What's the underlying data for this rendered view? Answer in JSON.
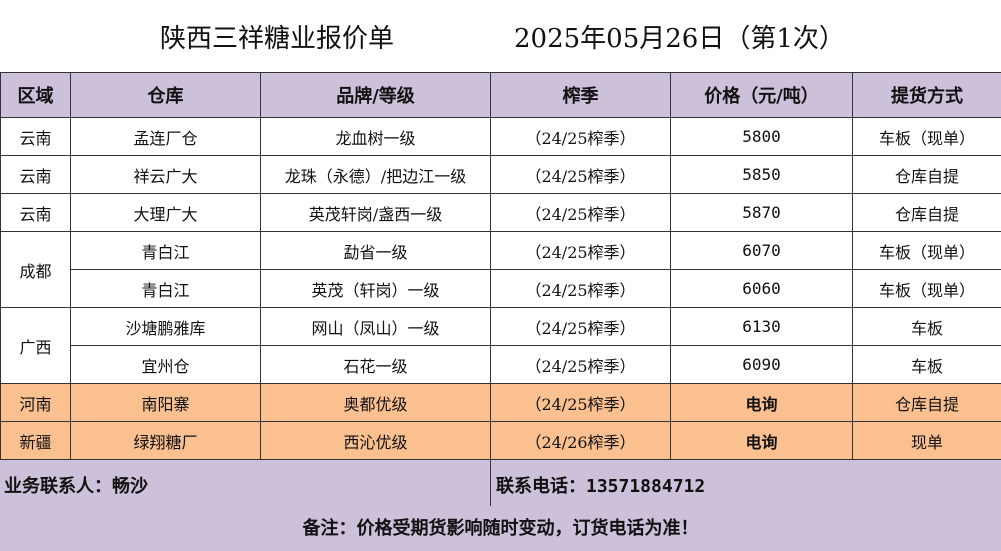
{
  "title": {
    "company": "陕西三祥糖业报价单",
    "date": "2025年05月26日（第1次）"
  },
  "columns": [
    "区域",
    "仓库",
    "品牌/等级",
    "榨季",
    "价格（元/吨）",
    "提货方式"
  ],
  "regions": {
    "yunnan": "云南",
    "chengdu": "成都",
    "guangxi": "广西",
    "henan": "河南",
    "xinjiang": "新疆"
  },
  "rows": [
    {
      "warehouse": "孟连厂仓",
      "brand": "龙血树一级",
      "season": "（24/25榨季）",
      "price": "5800",
      "delivery": "车板（现单）"
    },
    {
      "warehouse": "祥云广大",
      "brand": "龙珠（永德）/把边江一级",
      "season": "（24/25榨季）",
      "price": "5850",
      "delivery": "仓库自提"
    },
    {
      "warehouse": "大理广大",
      "brand": "英茂轩岗/盏西一级",
      "season": "（24/25榨季）",
      "price": "5870",
      "delivery": "仓库自提"
    },
    {
      "warehouse": "青白江",
      "brand": "勐省一级",
      "season": "（24/25榨季）",
      "price": "6070",
      "delivery": "车板（现单）"
    },
    {
      "warehouse": "青白江",
      "brand": "英茂（轩岗）一级",
      "season": "（24/25榨季）",
      "price": "6060",
      "delivery": "车板（现单）"
    },
    {
      "warehouse": "沙塘鹏雅库",
      "brand": "网山（凤山）一级",
      "season": "（24/25榨季）",
      "price": "6130",
      "delivery": "车板"
    },
    {
      "warehouse": "宜州仓",
      "brand": "石花一级",
      "season": "（24/25榨季）",
      "price": "6090",
      "delivery": "车板"
    },
    {
      "warehouse": "南阳寨",
      "brand": "奥都优级",
      "season": "（24/25榨季）",
      "price": "电询",
      "delivery": "仓库自提"
    },
    {
      "warehouse": "绿翔糖厂",
      "brand": "西沁优级",
      "season": "（24/26榨季）",
      "price": "电询",
      "delivery": "现单"
    }
  ],
  "contact": {
    "person_label": "业务联系人：畅沙",
    "phone_label": "联系电话：",
    "phone": "13571884712"
  },
  "note": "备注：价格受期货影响随时变动，订货电话为准！",
  "colors": {
    "header": "#ccc0da",
    "highlight": "#fac090",
    "border": "#333333"
  }
}
